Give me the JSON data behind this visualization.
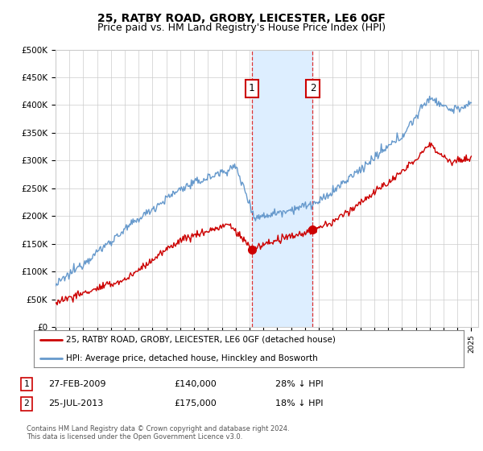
{
  "title": "25, RATBY ROAD, GROBY, LEICESTER, LE6 0GF",
  "subtitle": "Price paid vs. HM Land Registry's House Price Index (HPI)",
  "ylim": [
    0,
    500000
  ],
  "yticks": [
    0,
    50000,
    100000,
    150000,
    200000,
    250000,
    300000,
    350000,
    400000,
    450000,
    500000
  ],
  "ytick_labels": [
    "£0",
    "£50K",
    "£100K",
    "£150K",
    "£200K",
    "£250K",
    "£300K",
    "£350K",
    "£400K",
    "£450K",
    "£500K"
  ],
  "xlim_start": 1995.0,
  "xlim_end": 2025.5,
  "sale1_date": 2009.16,
  "sale1_price": 140000,
  "sale1_label": "1",
  "sale1_display": "27-FEB-2009",
  "sale1_amount": "£140,000",
  "sale1_hpi": "28% ↓ HPI",
  "sale2_date": 2013.56,
  "sale2_price": 175000,
  "sale2_label": "2",
  "sale2_display": "25-JUL-2013",
  "sale2_amount": "£175,000",
  "sale2_hpi": "18% ↓ HPI",
  "red_line_color": "#cc0000",
  "blue_line_color": "#6699cc",
  "shade_color": "#ddeeff",
  "marker_box_color": "#cc0000",
  "grid_color": "#cccccc",
  "background_color": "#ffffff",
  "legend_line1": "25, RATBY ROAD, GROBY, LEICESTER, LE6 0GF (detached house)",
  "legend_line2": "HPI: Average price, detached house, Hinckley and Bosworth",
  "footnote": "Contains HM Land Registry data © Crown copyright and database right 2024.\nThis data is licensed under the Open Government Licence v3.0.",
  "title_fontsize": 10,
  "subtitle_fontsize": 9
}
